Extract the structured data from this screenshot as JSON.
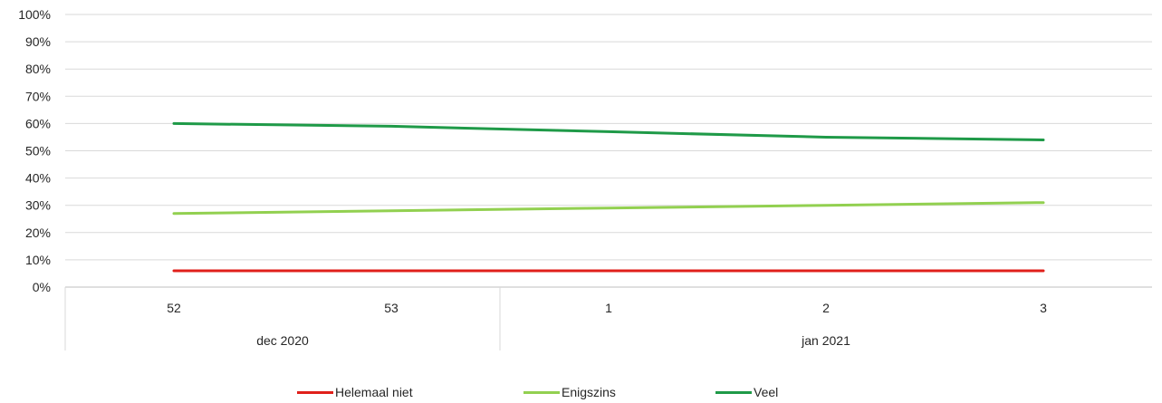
{
  "chart_data": {
    "type": "line",
    "categories": [
      "52",
      "53",
      "1",
      "2",
      "3"
    ],
    "category_groups": [
      {
        "label": "dec 2020",
        "categories": [
          "52",
          "53"
        ]
      },
      {
        "label": "jan 2021",
        "categories": [
          "1",
          "2",
          "3"
        ]
      }
    ],
    "series": [
      {
        "name": "Helemaal niet",
        "color": "#e0201b",
        "values": [
          6,
          6,
          6,
          6,
          6
        ]
      },
      {
        "name": "Enigszins",
        "color": "#92d050",
        "values": [
          27,
          28,
          29,
          30,
          31
        ]
      },
      {
        "name": "Veel",
        "color": "#1f9a48",
        "values": [
          60,
          59,
          57,
          55,
          54
        ]
      }
    ],
    "yticks": [
      "0%",
      "10%",
      "20%",
      "30%",
      "40%",
      "50%",
      "60%",
      "70%",
      "80%",
      "90%",
      "100%"
    ],
    "ylim": [
      0,
      100
    ],
    "grid": true,
    "legend": "bottom"
  }
}
